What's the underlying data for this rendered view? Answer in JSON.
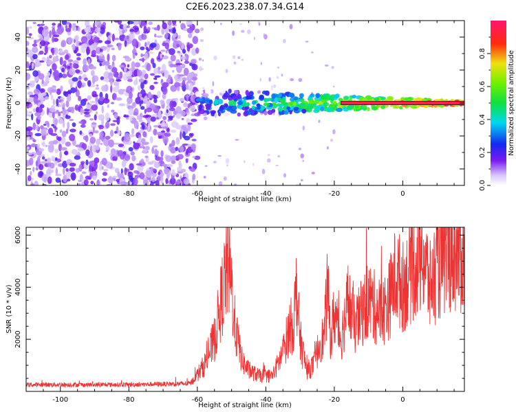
{
  "title": "C2E6.2023.238.07.34.G14",
  "colors": {
    "snr_line": "#ee3333",
    "spectrum_purple": "#7a1cf0",
    "spectrum_light": "#cdb6f7",
    "axis": "#000000"
  },
  "chart_data": [
    {
      "type": "heatmap",
      "xlabel": "Height of straight line (km)",
      "ylabel": "Frequency (Hz)",
      "xlim": [
        -110,
        18
      ],
      "ylim": [
        -50,
        50
      ],
      "xticks": [
        -100,
        -80,
        -60,
        -40,
        -20,
        0
      ],
      "xtick_labels": [
        "-100",
        "-80",
        "-60",
        "-40",
        "-20",
        "0"
      ],
      "yticks": [
        -40,
        -20,
        0,
        20,
        40
      ],
      "ytick_labels": [
        "-40",
        "-20",
        "0",
        "20",
        "40"
      ],
      "colorbar": {
        "label": "Normalized spectral amplitude",
        "range": [
          0,
          1
        ],
        "ticks": [
          0.0,
          0.2,
          0.4,
          0.6,
          0.8
        ],
        "tick_labels": [
          "0.0",
          "0.2",
          "0.4",
          "0.6",
          "0.8"
        ],
        "colormap": "white-purple-blue-cyan-green-yellow-red-magenta"
      },
      "features": {
        "noise_region_x": [
          -110,
          -60
        ],
        "carrier_frequency_hz": 0,
        "carrier_start_x": -60
      }
    },
    {
      "type": "line",
      "xlabel": "Height of straight line (km)",
      "ylabel": "SNR (10 * v/v)",
      "xlim": [
        -110,
        18
      ],
      "ylim": [
        0,
        6300
      ],
      "xticks": [
        -100,
        -80,
        -60,
        -40,
        -20,
        0
      ],
      "xtick_labels": [
        "-100",
        "-80",
        "-60",
        "-40",
        "-20",
        "0"
      ],
      "yticks": [
        2000,
        4000,
        6000
      ],
      "ytick_labels": [
        "2000",
        "4000",
        "6000"
      ],
      "series": [
        {
          "x": [
            -110,
            -100,
            -90,
            -80,
            -70,
            -62,
            -58,
            -55,
            -53,
            -51,
            -50,
            -49,
            -47,
            -45,
            -42,
            -38,
            -35,
            -33,
            -32,
            -31,
            -30,
            -28,
            -26,
            -24,
            -23,
            -22,
            -21,
            -20,
            -18,
            -16,
            -14,
            -12,
            -10,
            -8,
            -6,
            -4,
            -2,
            0,
            2,
            4,
            6,
            8,
            10,
            12,
            14,
            16,
            18
          ],
          "y": [
            250,
            260,
            250,
            260,
            280,
            300,
            1000,
            2000,
            3500,
            5000,
            4000,
            2500,
            1200,
            800,
            600,
            600,
            1500,
            2500,
            2500,
            4000,
            2000,
            800,
            1000,
            2000,
            2000,
            4000,
            2000,
            3000,
            2000,
            3500,
            2500,
            3000,
            3500,
            3200,
            3000,
            3500,
            4500,
            4000,
            4500,
            5000,
            5200,
            4000,
            4800,
            5000,
            5500,
            5300,
            5200
          ]
        }
      ]
    }
  ]
}
